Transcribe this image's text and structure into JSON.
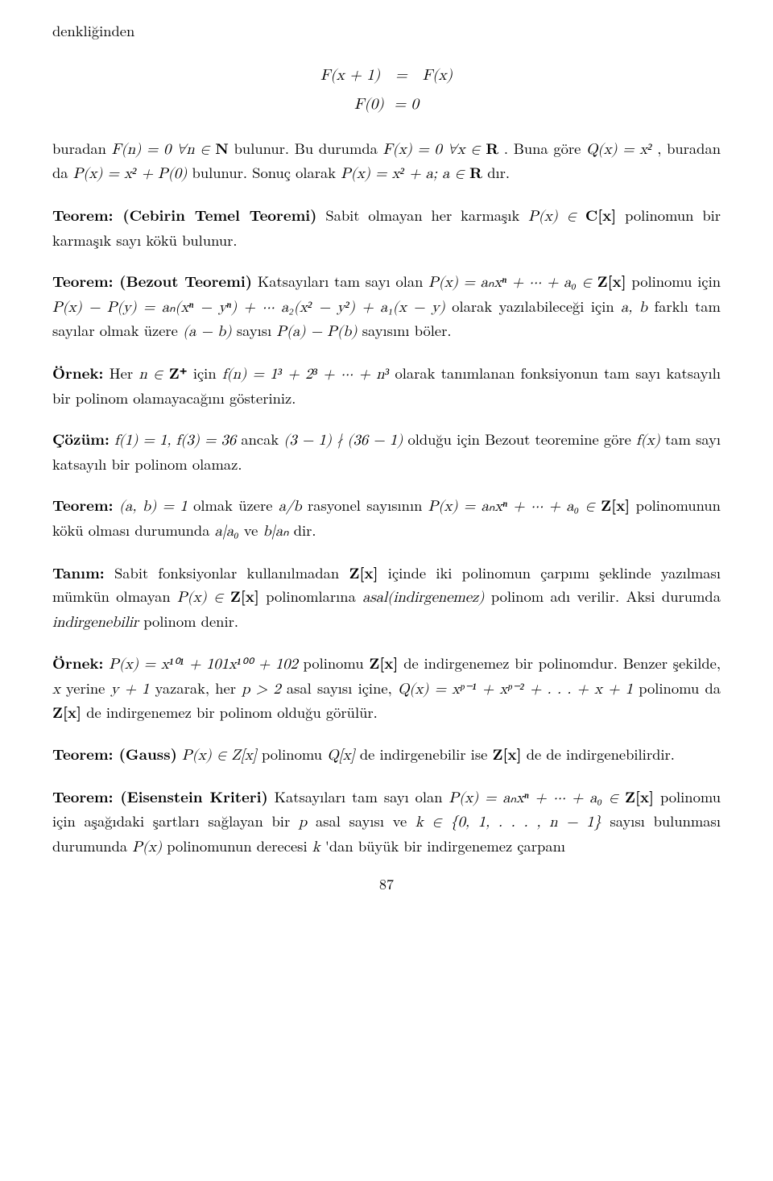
{
  "page_number": "87",
  "lead_word": "denkliğinden",
  "eq1_line1": "F(x + 1)   =   F(x)",
  "eq1_line2": "F(0)  = 0",
  "p1_a": "buradan ",
  "p1_b": " bulunur. Bu durumda ",
  "p1_c": ". Buna göre ",
  "p1_d": ", buradan da ",
  "p1_e": " bulunur. Sonuç olarak ",
  "p1_f": " dır.",
  "p2_head": "Teorem: (Cebirin Temel Teoremi)",
  "p2_a": " Sabit olmayan her karmaşık ",
  "p2_b": " polinomun bir karmaşık sayı kökü bulunur.",
  "p3_head": "Teorem: (Bezout Teoremi)",
  "p3_a": " Katsayıları tam sayı olan ",
  "p3_b": " polinomu için ",
  "p3_c": " olarak yazılabileceği için ",
  "p3_d": " farklı tam sayılar olmak üzere ",
  "p3_e": " sayısı ",
  "p3_f": " sayısını böler.",
  "p4_head": "Örnek:",
  "p4_a": " Her ",
  "p4_b": " için ",
  "p4_c": " olarak tanımlanan fonksiyonun tam sayı katsayılı bir polinom olamayacağını gösteriniz.",
  "p5_head": "Çözüm:",
  "p5_a": " ",
  "p5_b": " ancak ",
  "p5_c": " olduğu için Bezout teoremine göre ",
  "p5_d": " tam sayı katsayılı bir polinom olamaz.",
  "p6_head": "Teorem:",
  "p6_a": " ",
  "p6_b": " olmak üzere ",
  "p6_c": " rasyonel sayısının ",
  "p6_d": " polinomunun kökü olması durumunda ",
  "p6_e": " ve ",
  "p6_f": " dir.",
  "p7_head": "Tanım:",
  "p7_a": " Sabit fonksiyonlar kullanılmadan ",
  "p7_b": " içinde iki polinomun çarpımı şeklinde yazılması mümkün olmayan ",
  "p7_c": " polinomlarına ",
  "p7_d": "asal(indirgenemez)",
  "p7_e": " polinom adı verilir. Aksi durumda ",
  "p7_f": "indirgenebilir",
  "p7_g": " polinom denir.",
  "p8_head": "Örnek:",
  "p8_a": " ",
  "p8_b": " polinomu ",
  "p8_c": " de indirgenemez bir polinomdur. Benzer şekilde, ",
  "p8_d": " yerine ",
  "p8_e": " yazarak, her ",
  "p8_f": " asal sayısı içine, ",
  "p8_g": " polinomu da ",
  "p8_h": " de indirgenemez bir polinom olduğu görülür.",
  "p9_head": "Teorem: (Gauss)",
  "p9_a": " ",
  "p9_b": " polinomu ",
  "p9_c": " de indirgenebilir ise ",
  "p9_d": " de de indirgenebilirdir.",
  "p10_head": "Teorem: (Eisenstein Kriteri)",
  "p10_a": " Katsayıları tam sayı olan ",
  "p10_b": " polinomu için aşağıdaki şartları sağlayan bir ",
  "p10_c": " asal sayısı ve ",
  "p10_d": " sayısı bulunması durumunda ",
  "p10_e": " polinomunun derecesi ",
  "p10_f": "'dan büyük bir indirgenemez çarpanı",
  "math": {
    "Fn0": "F(n) = 0  ∀n ∈ ",
    "N": "N",
    "Fx0": "F(x) = 0  ∀x ∈ ",
    "R": "R",
    "Qxx2": "Q(x) = x²",
    "Px_x2P0": "P(x) = x² + P(0)",
    "Px_x2a": "P(x) = x² + a;   a ∈ ",
    "Px_in_Cx": "P(x) ∈ ",
    "Cx": "C[x]",
    "Px_poly": "P(x) = aₙxⁿ + ··· + a₀ ∈ ",
    "Zx": "Z[x]",
    "PxPy": "P(x) − P(y) = aₙ(xⁿ − yⁿ) + ··· a₂(x² − y²) + a₁(x − y)",
    "ab": "a, b",
    "amb": "(a − b)",
    "PaPb": "P(a) − P(b)",
    "n_in_Zp": "n ∈ ",
    "Zp": "Z⁺",
    "fn_cubes": "f(n) = 1³ + 2³ + ··· + n³",
    "f1_f3": "f(1) = 1,  f(3) = 36",
    "nmid": "(3 − 1) ∤ (36 − 1)",
    "fx": "f(x)",
    "ab1": "(a, b) = 1",
    "a_over_b": "a/b",
    "a_div_a0": "a|a₀",
    "b_div_an": "b|aₙ",
    "Px_in_Zx": "P(x) ∈ ",
    "Px101": "P(x) = x¹⁰¹ + 101x¹⁰⁰ + 102",
    "x": "x",
    "yp1": "y + 1",
    "pgt2": "p > 2",
    "Qx_p": "Q(x) = xᵖ⁻¹ + xᵖ⁻² + . . . + x + 1",
    "Px_in_Zxg": "P(x) ∈ Z[x]",
    "Qx": "Q[x]",
    "p": "p",
    "k_in": "k ∈ {0, 1, . . . , n − 1}",
    "Px": "P(x)",
    "k": "k"
  }
}
